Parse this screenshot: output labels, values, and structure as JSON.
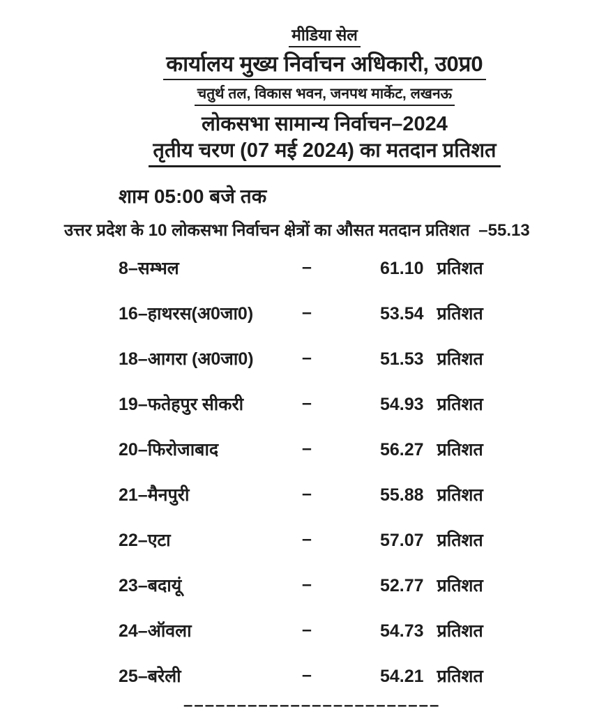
{
  "colors": {
    "paper": "#ffffff",
    "ink": "#1d1d1d"
  },
  "letterhead": {
    "unit_name": "मीडिया सेल",
    "office_title": "कार्यालय मुख्य निर्वाचन अधिकारी, उ0प्र0",
    "office_address": "चतुर्थ तल, विकास भवन, जनपथ मार्केट, लखनऊ"
  },
  "title": {
    "line1": "लोकसभा सामान्य निर्वाचन–2024",
    "line2": "तृतीय चरण (07 मई 2024) का मतदान प्रतिशत"
  },
  "time_note": "शाम 05:00 बजे तक",
  "summary": {
    "text": "उत्तर प्रदेश के 10 लोकसभा निर्वाचन क्षेत्रों का औसत मतदान प्रतिशत",
    "value": "–55.13"
  },
  "table": {
    "separator": "–",
    "unit": "प्रतिशत",
    "rows": [
      {
        "label": "8–सम्भल",
        "percent": "61.10"
      },
      {
        "label": "16–हाथरस(अ0जा0)",
        "percent": "53.54"
      },
      {
        "label": "18–आगरा (अ0जा0)",
        "percent": "51.53"
      },
      {
        "label": "19–फतेहपुर सीकरी",
        "percent": "54.93"
      },
      {
        "label": "20–फिरोजाबाद",
        "percent": "56.27"
      },
      {
        "label": "21–मैनपुरी",
        "percent": "55.88"
      },
      {
        "label": "22–एटा",
        "percent": "57.07"
      },
      {
        "label": "23–बदायूं",
        "percent": "52.77"
      },
      {
        "label": "24–ऑवला",
        "percent": "54.73"
      },
      {
        "label": "25–बरेली",
        "percent": "54.21"
      }
    ]
  },
  "divider": "––––––––––––––––––––––––"
}
